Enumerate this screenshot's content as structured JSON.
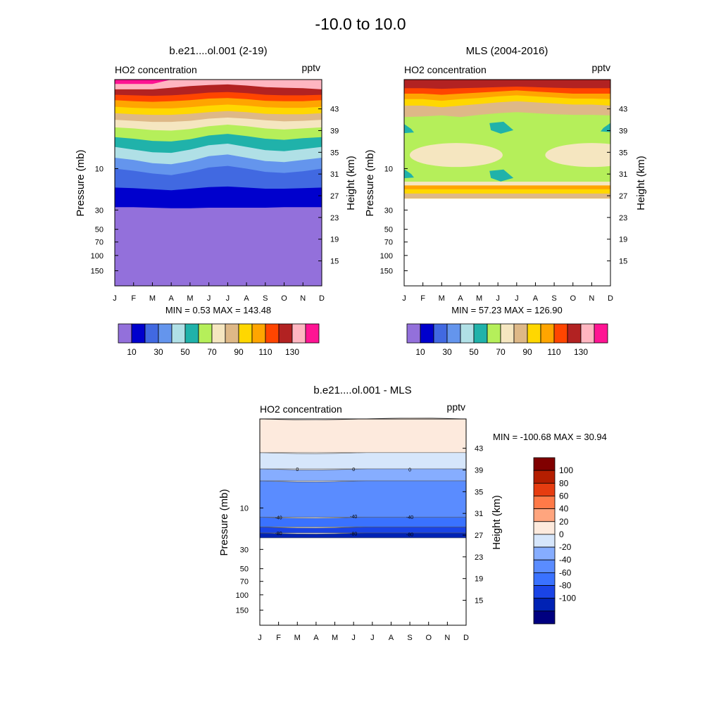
{
  "page_title": "-10.0 to  10.0",
  "colors": {
    "ho2_fills": [
      "#9370db",
      "#0000cd",
      "#4169e1",
      "#6495ed",
      "#b0e0e6",
      "#20b2aa",
      "#b5ef5a",
      "#f5e6c0",
      "#deb887",
      "#ffd700",
      "#ffa500",
      "#ff4500",
      "#b22222",
      "#ffb6c1",
      "#ff1493"
    ],
    "diff_fills": [
      "#000080",
      "#0022b4",
      "#1a44e6",
      "#3a72ff",
      "#5a8cff",
      "#86adff",
      "#d6e6fb",
      "#fdeadd",
      "#ffa57e",
      "#ff7a48",
      "#e63c10",
      "#b41e00",
      "#800000"
    ]
  },
  "chart_data": [
    {
      "type": "contour",
      "panel": "model",
      "title": "b.e21....ol.001 (2-19)",
      "left_label": "HO2 concentration",
      "right_label": "pptv",
      "xlabel": "",
      "ylabel": "Pressure (mb)",
      "ylabel_right": "Height (km)",
      "x": [
        "J",
        "F",
        "M",
        "A",
        "M",
        "J",
        "J",
        "A",
        "S",
        "O",
        "N",
        "D"
      ],
      "pressure_ticks": [
        "10",
        "30",
        "50",
        "70",
        "100",
        "150"
      ],
      "height_ticks": [
        "43",
        "39",
        "35",
        "31",
        "27",
        "23",
        "19",
        "15"
      ],
      "stats": "MIN =   0.53  MAX = 143.48",
      "levels": [
        10,
        20,
        30,
        40,
        50,
        60,
        70,
        80,
        90,
        100,
        110,
        120,
        130,
        140
      ],
      "colorbar_labels": [
        "10",
        "30",
        "50",
        "70",
        "90",
        "110",
        "130"
      ],
      "band_boundaries_km": [
        {
          "level": 10,
          "height": [
            24.9,
            24.9,
            24.8,
            24.7,
            24.7,
            24.8,
            24.8,
            24.8,
            24.8,
            24.9,
            24.9,
            24.9
          ]
        },
        {
          "level": 20,
          "height": [
            28.5,
            28.4,
            28.2,
            28.0,
            28.3,
            28.6,
            28.7,
            28.5,
            28.3,
            28.3,
            28.4,
            28.5
          ]
        },
        {
          "level": 30,
          "height": [
            32.0,
            31.6,
            31.1,
            30.8,
            31.4,
            32.2,
            32.5,
            32.0,
            31.4,
            31.2,
            31.5,
            32.0
          ]
        },
        {
          "level": 40,
          "height": [
            34.0,
            33.6,
            33.0,
            32.8,
            33.4,
            34.3,
            34.6,
            34.0,
            33.4,
            33.2,
            33.6,
            34.0
          ]
        },
        {
          "level": 50,
          "height": [
            36.0,
            35.5,
            35.0,
            34.9,
            35.5,
            36.3,
            36.6,
            36.0,
            35.4,
            35.2,
            35.6,
            36.0
          ]
        },
        {
          "level": 60,
          "height": [
            37.8,
            37.5,
            37.1,
            37.0,
            37.4,
            38.1,
            38.4,
            38.0,
            37.5,
            37.3,
            37.6,
            37.8
          ]
        },
        {
          "level": 70,
          "height": [
            39.6,
            39.4,
            39.1,
            39.0,
            39.3,
            39.8,
            40.1,
            39.8,
            39.4,
            39.2,
            39.4,
            39.6
          ]
        },
        {
          "level": 80,
          "height": [
            41.0,
            40.8,
            40.6,
            40.6,
            40.8,
            41.2,
            41.4,
            41.2,
            40.9,
            40.7,
            40.8,
            41.0
          ]
        },
        {
          "level": 90,
          "height": [
            42.2,
            42.0,
            41.9,
            41.9,
            42.1,
            42.4,
            42.6,
            42.4,
            42.1,
            42.0,
            42.0,
            42.2
          ]
        },
        {
          "level": 100,
          "height": [
            43.4,
            43.2,
            43.1,
            43.1,
            43.3,
            43.6,
            43.8,
            43.6,
            43.3,
            43.2,
            43.2,
            43.4
          ]
        },
        {
          "level": 110,
          "height": [
            44.6,
            44.4,
            44.3,
            44.4,
            44.6,
            44.9,
            45.0,
            44.8,
            44.5,
            44.4,
            44.4,
            44.6
          ]
        },
        {
          "level": 120,
          "height": [
            45.6,
            45.5,
            45.4,
            45.5,
            45.7,
            46.0,
            46.1,
            45.9,
            45.6,
            45.5,
            45.5,
            45.6
          ]
        },
        {
          "level": 130,
          "height": [
            46.6,
            46.6,
            46.6,
            46.9,
            47.2,
            47.4,
            47.5,
            47.3,
            47.0,
            46.9,
            46.8,
            46.6
          ]
        },
        {
          "level": 140,
          "height": [
            47.6,
            47.6,
            47.6,
            48.4,
            48.4,
            48.4,
            48.4,
            48.4,
            48.4,
            48.4,
            48.4,
            48.4
          ]
        }
      ]
    },
    {
      "type": "contour",
      "panel": "obs",
      "title": "MLS (2004-2016)",
      "left_label": "HO2 concentration",
      "right_label": "pptv",
      "xlabel": "",
      "ylabel": "Pressure (mb)",
      "ylabel_right": "Height (km)",
      "x": [
        "J",
        "F",
        "M",
        "A",
        "M",
        "J",
        "J",
        "A",
        "S",
        "O",
        "N",
        "D"
      ],
      "pressure_ticks": [
        "10",
        "30",
        "50",
        "70",
        "100",
        "150"
      ],
      "height_ticks": [
        "43",
        "39",
        "35",
        "31",
        "27",
        "23",
        "19",
        "15"
      ],
      "stats": "MIN =  57.23  MAX = 126.90",
      "levels": [
        10,
        20,
        30,
        40,
        50,
        60,
        70,
        80,
        90,
        100,
        110,
        120,
        130,
        140
      ],
      "colorbar_labels": [
        "10",
        "30",
        "50",
        "70",
        "90",
        "110",
        "130"
      ],
      "data_bottom_km": 26.5,
      "base_value_range": [
        60,
        70
      ],
      "band_boundaries_km": [
        {
          "level": 80,
          "height": [
            27.4,
            27.4,
            27.4,
            27.4,
            27.4,
            27.4,
            27.4,
            27.4,
            27.4,
            27.4,
            27.4,
            27.4
          ]
        },
        {
          "level": 90,
          "height": [
            28.2,
            28.2,
            28.2,
            28.2,
            28.2,
            28.2,
            28.2,
            28.2,
            28.2,
            28.2,
            28.2,
            28.2
          ]
        },
        {
          "level": 100,
          "height": [
            28.9,
            28.9,
            28.9,
            28.9,
            28.9,
            28.9,
            28.9,
            28.9,
            28.9,
            28.9,
            28.9,
            28.9
          ]
        },
        {
          "level": 70,
          "height": [
            29.6,
            29.6,
            29.6,
            29.6,
            29.6,
            29.6,
            29.6,
            29.6,
            29.6,
            29.6,
            29.6,
            29.6
          ]
        },
        {
          "level": 80,
          "height": [
            41.5,
            41.6,
            41.8,
            41.5,
            41.9,
            42.2,
            42.4,
            42.2,
            42.0,
            41.9,
            41.9,
            41.8
          ]
        },
        {
          "level": 90,
          "height": [
            43.6,
            43.6,
            43.3,
            43.6,
            43.9,
            44.2,
            44.4,
            44.2,
            44.0,
            43.8,
            43.8,
            43.6
          ]
        },
        {
          "level": 100,
          "height": [
            44.8,
            44.8,
            44.5,
            44.8,
            45.0,
            45.3,
            45.5,
            45.3,
            45.1,
            44.9,
            44.9,
            44.8
          ]
        },
        {
          "level": 110,
          "height": [
            45.8,
            45.8,
            45.6,
            45.8,
            46.0,
            46.2,
            46.4,
            46.2,
            46.0,
            45.8,
            45.8,
            45.8
          ]
        },
        {
          "level": 120,
          "height": [
            46.8,
            46.8,
            46.7,
            46.8,
            46.9,
            47.0,
            47.1,
            47.0,
            46.9,
            46.8,
            46.8,
            46.8
          ]
        }
      ],
      "features": [
        {
          "value": "70-80",
          "shape": "blob",
          "x_center": "Apr",
          "height_km_center": 34.5
        },
        {
          "value": "70-80",
          "shape": "blob",
          "x_center": "Nov",
          "height_km_center": 34.5
        },
        {
          "value": "50-60",
          "shape": "patch",
          "x_center": "Jun",
          "height_km_center": 39.6
        },
        {
          "value": "50-60",
          "shape": "patch",
          "x_center": "Jun",
          "height_km_center": 30.8
        },
        {
          "value": "50-60",
          "shape": "edge",
          "x_center": "Jan",
          "height_km_center": 31.0
        },
        {
          "value": "50-60",
          "shape": "edge",
          "x_center": "Jan",
          "height_km_center": 39.3
        },
        {
          "value": "50-60",
          "shape": "edge",
          "x_center": "Dec",
          "height_km_center": 39.5
        }
      ]
    },
    {
      "type": "contour",
      "panel": "difference",
      "title": "b.e21....ol.001 - MLS",
      "left_label": "HO2 concentration",
      "right_label": "pptv",
      "xlabel": "",
      "ylabel": "Pressure (mb)",
      "ylabel_right": "Height (km)",
      "x": [
        "J",
        "F",
        "M",
        "A",
        "M",
        "J",
        "J",
        "A",
        "S",
        "O",
        "N",
        "D"
      ],
      "pressure_ticks": [
        "10",
        "30",
        "50",
        "70",
        "100",
        "150"
      ],
      "height_ticks": [
        "43",
        "39",
        "35",
        "31",
        "27",
        "23",
        "19",
        "15"
      ],
      "stats": "MIN = -100.68  MAX =  30.94",
      "levels": [
        -100,
        -80,
        -60,
        -40,
        -20,
        0,
        20,
        40,
        60,
        80,
        100
      ],
      "colorbar_labels": [
        "100",
        "80",
        "60",
        "40",
        "20",
        "0",
        "-20",
        "-40",
        "-60",
        "-80",
        "-100"
      ],
      "data_bottom_km": 26.5,
      "bands": [
        {
          "range": "-100 to -80",
          "from_km": 26.5,
          "to_km": 27.4
        },
        {
          "range": "-80 to -60",
          "from_km": 27.4,
          "to_km": 28.5
        },
        {
          "range": "-60 to -40",
          "from_km": 28.5,
          "to_km": 30.3
        },
        {
          "range": "-40 to -20",
          "from_km": 30.3,
          "to_km": 37.0
        },
        {
          "range": "-20 to 0",
          "from_km": 37.0,
          "to_km": 39.2
        },
        {
          "range": "0 to 20",
          "from_km": 39.2,
          "to_km": 42.2
        },
        {
          "range": "20 to 40",
          "from_km": 42.2,
          "to_km": 48.4
        }
      ],
      "contour_labels": [
        {
          "text": "0",
          "x": "Mar",
          "height_km": 39.2
        },
        {
          "text": "0",
          "x": "Jun",
          "height_km": 39.2
        },
        {
          "text": "0",
          "x": "Sep",
          "height_km": 39.1
        },
        {
          "text": "-40",
          "x": "Feb",
          "height_km": 30.3
        },
        {
          "text": "-40",
          "x": "Jun",
          "height_km": 30.5
        },
        {
          "text": "-40",
          "x": "Sep",
          "height_km": 30.4
        },
        {
          "text": "-80",
          "x": "Feb",
          "height_km": 27.4
        },
        {
          "text": "-80",
          "x": "Jun",
          "height_km": 27.3
        },
        {
          "text": "-80",
          "x": "Sep",
          "height_km": 27.2
        }
      ]
    }
  ]
}
